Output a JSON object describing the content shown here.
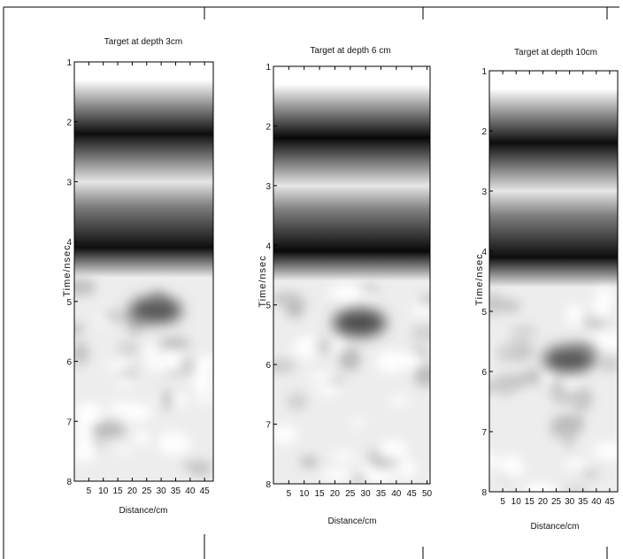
{
  "chart_data": [
    {
      "type": "heatmap",
      "title": "Target at depth 3cm",
      "xlabel": "Distance/cm",
      "ylabel": "Time/nsec",
      "xticks": [
        5,
        10,
        15,
        20,
        25,
        30,
        35,
        40,
        45
      ],
      "yticks": [
        1,
        2,
        3,
        4,
        5,
        6,
        7,
        8
      ],
      "xlim": [
        0,
        48
      ],
      "ylim": [
        1,
        8
      ],
      "colormap": "gray",
      "bands_ns": [
        {
          "center": 1.3,
          "level": 1.0
        },
        {
          "center": 2.2,
          "level": 0.05
        },
        {
          "center": 3.0,
          "level": 0.9
        },
        {
          "center": 3.4,
          "level": 0.5
        },
        {
          "center": 4.1,
          "level": 0.05
        }
      ],
      "target": {
        "distance_cm": 28,
        "time_ns": 5.15,
        "level": 0.35
      }
    },
    {
      "type": "heatmap",
      "title": "Target at depth 6 cm",
      "xlabel": "Distance/cm",
      "ylabel": "Time/nsec",
      "xticks": [
        5,
        10,
        15,
        20,
        25,
        30,
        35,
        40,
        45,
        50
      ],
      "yticks": [
        1,
        2,
        3,
        4,
        5,
        6,
        7,
        8
      ],
      "xlim": [
        0,
        51
      ],
      "ylim": [
        1,
        8
      ],
      "colormap": "gray",
      "bands_ns": [
        {
          "center": 1.3,
          "level": 1.0
        },
        {
          "center": 2.2,
          "level": 0.03
        },
        {
          "center": 3.0,
          "level": 0.9
        },
        {
          "center": 3.4,
          "level": 0.5
        },
        {
          "center": 4.1,
          "level": 0.03
        }
      ],
      "target": {
        "distance_cm": 28,
        "time_ns": 5.3,
        "level": 0.3
      }
    },
    {
      "type": "heatmap",
      "title": "Target at depth 10cm",
      "xlabel": "Distance/cm",
      "ylabel": "Time/nsec",
      "xticks": [
        5,
        10,
        15,
        20,
        25,
        30,
        35,
        40,
        45
      ],
      "yticks": [
        1,
        2,
        3,
        4,
        5,
        6,
        7,
        8
      ],
      "xlim": [
        0,
        48
      ],
      "ylim": [
        1,
        8
      ],
      "colormap": "gray",
      "bands_ns": [
        {
          "center": 1.3,
          "level": 1.0
        },
        {
          "center": 2.2,
          "level": 0.05
        },
        {
          "center": 3.0,
          "level": 0.9
        },
        {
          "center": 3.4,
          "level": 0.5
        },
        {
          "center": 4.1,
          "level": 0.05
        }
      ],
      "target": {
        "distance_cm": 30,
        "time_ns": 5.8,
        "level": 0.35
      }
    }
  ]
}
